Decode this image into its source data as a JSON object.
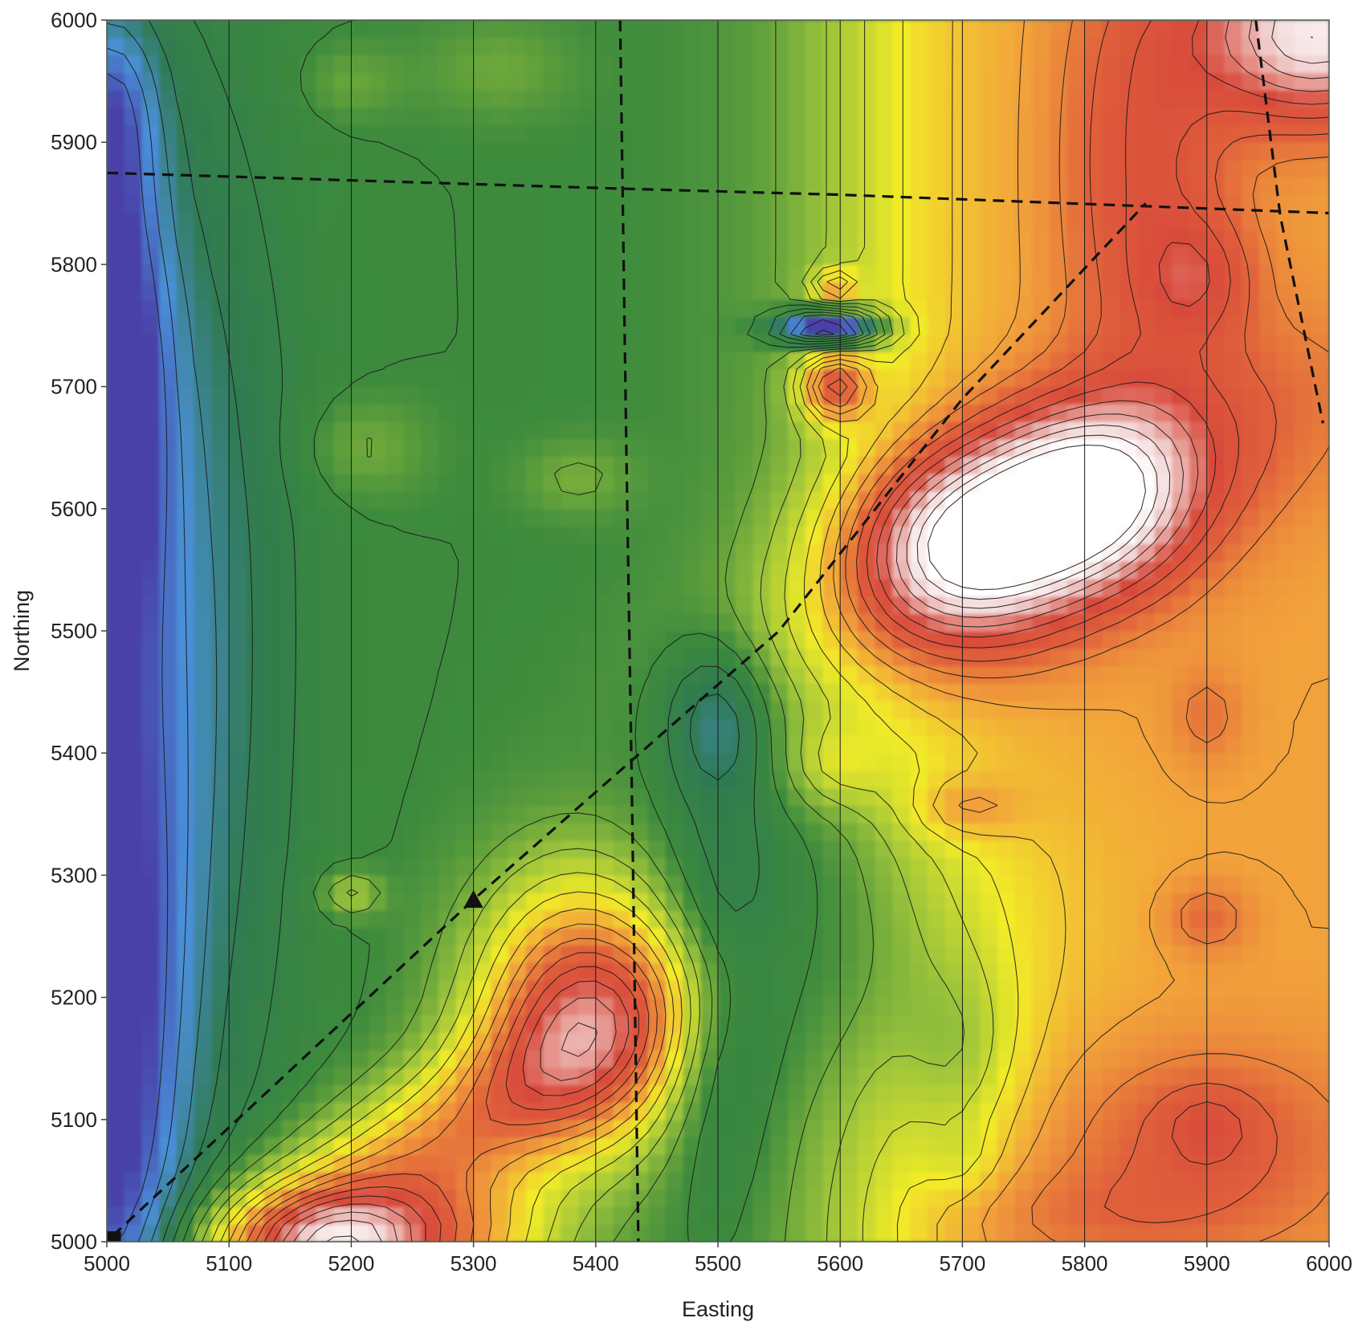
{
  "chart_data": {
    "type": "heatmap",
    "subtype": "filled contour map",
    "title": "",
    "xlabel": "Easting",
    "ylabel": "Northing",
    "xlim": [
      5000,
      6000
    ],
    "ylim": [
      5000,
      6000
    ],
    "x_ticks": [
      5000,
      5100,
      5200,
      5300,
      5400,
      5500,
      5600,
      5700,
      5800,
      5900,
      6000
    ],
    "y_ticks": [
      5000,
      5100,
      5200,
      5300,
      5400,
      5500,
      5600,
      5700,
      5800,
      5900,
      6000
    ],
    "grid": "vertical survey lines at every x tick",
    "colorscale": [
      "#4a3fa8",
      "#4a8fd8",
      "#2f7a52",
      "#3c8a3c",
      "#9cc43a",
      "#f2ec28",
      "#f2a23a",
      "#e0603a",
      "#d84a3a",
      "#f2d6d6",
      "#ffffff"
    ],
    "features": [
      {
        "kind": "high",
        "x": 5700,
        "y": 5570,
        "level": 10
      },
      {
        "kind": "high",
        "x": 5800,
        "y": 5610,
        "level": 10
      },
      {
        "kind": "high",
        "x": 5990,
        "y": 5990,
        "level": 10
      },
      {
        "kind": "high",
        "x": 5595,
        "y": 5700,
        "level": 7
      },
      {
        "kind": "low",
        "x": 5592,
        "y": 5748,
        "level": 0
      },
      {
        "kind": "low",
        "x": 5005,
        "y": 5715,
        "level": 0
      },
      {
        "kind": "low",
        "x": 5005,
        "y": 5150,
        "level": 0
      },
      {
        "kind": "high",
        "x": 5400,
        "y": 5210,
        "level": 7
      },
      {
        "kind": "high",
        "x": 5190,
        "y": 4995,
        "level": 8
      },
      {
        "kind": "high",
        "x": 5895,
        "y": 5790,
        "level": 8
      },
      {
        "kind": "high",
        "x": 5900,
        "y": 5265,
        "level": 7
      },
      {
        "kind": "low",
        "x": 5500,
        "y": 5430,
        "level": 1
      },
      {
        "kind": "low",
        "x": 5500,
        "y": 5180,
        "level": 2
      }
    ],
    "dashed_lines": [
      [
        [
          5000,
          5875
        ],
        [
          5420,
          5862
        ],
        [
          5600,
          5857
        ],
        [
          6000,
          5842
        ]
      ],
      [
        [
          5420,
          6000
        ],
        [
          5425,
          5650
        ],
        [
          5430,
          5340
        ],
        [
          5435,
          4990
        ]
      ],
      [
        [
          5000,
          4997
        ],
        [
          6000,
          4997
        ]
      ],
      [
        [
          5005,
          5005
        ],
        [
          5300,
          5280
        ],
        [
          5550,
          5500
        ],
        [
          5700,
          5690
        ],
        [
          5850,
          5850
        ]
      ],
      [
        [
          5940,
          6000
        ],
        [
          5960,
          5840
        ],
        [
          5995,
          5670
        ]
      ]
    ],
    "markers": [
      {
        "shape": "triangle",
        "x": 5300,
        "y": 5280
      },
      {
        "shape": "square",
        "x": 5003,
        "y": 5000
      }
    ]
  }
}
